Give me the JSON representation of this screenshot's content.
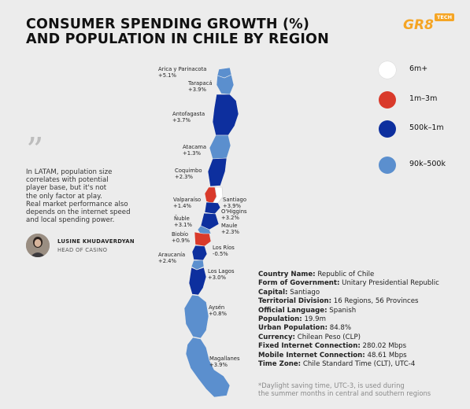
{
  "title": {
    "line1": "CONSUMER SPENDING GROWTH (%)",
    "line2": "AND POPULATION IN CHILE BY REGION"
  },
  "logo": {
    "text": "GR8",
    "tag": "TECH"
  },
  "colors": {
    "six_m_plus": "#ffffff",
    "one_to_three_m": "#d93a2b",
    "five_hundred_k_to_one_m": "#0d2f9e",
    "ninety_k_to_five_hundred_k": "#5b8fce"
  },
  "legend": [
    {
      "label": "6m+",
      "color": "#ffffff"
    },
    {
      "label": "1m–3m",
      "color": "#d93a2b"
    },
    {
      "label": "500k–1m",
      "color": "#0d2f9e"
    },
    {
      "label": "90k–500k",
      "color": "#5b8fce"
    }
  ],
  "regions": [
    {
      "name": "Arica y Parinacota",
      "growth": "+5.1%",
      "population_class": "90k–500k"
    },
    {
      "name": "Tarapacá",
      "growth": "+3.9%",
      "population_class": "90k–500k"
    },
    {
      "name": "Antofagasta",
      "growth": "+3.7%",
      "population_class": "500k–1m"
    },
    {
      "name": "Atacama",
      "growth": "+1.3%",
      "population_class": "90k–500k"
    },
    {
      "name": "Coquimbo",
      "growth": "+2.3%",
      "population_class": "500k–1m"
    },
    {
      "name": "Valparaíso",
      "growth": "+1.4%",
      "population_class": "1m–3m"
    },
    {
      "name": "Santiago",
      "growth": "+3.9%",
      "population_class": "6m+"
    },
    {
      "name": "O'Higgins",
      "growth": "+3.2%",
      "population_class": "500k–1m"
    },
    {
      "name": "Ñuble",
      "growth": "+3.1%",
      "population_class": "90k–500k"
    },
    {
      "name": "Maule",
      "growth": "+2.3%",
      "population_class": "1m–3m"
    },
    {
      "name": "Biobío",
      "growth": "+0.9%",
      "population_class": "1m–3m"
    },
    {
      "name": "Los Ríos",
      "growth": "-0.5%",
      "population_class": "90k–500k"
    },
    {
      "name": "Araucanía",
      "growth": "+2.4%",
      "population_class": "500k–1m"
    },
    {
      "name": "Los Lagos",
      "growth": "+3.0%",
      "population_class": "500k–1m"
    },
    {
      "name": "Aysén",
      "growth": "+0.8%",
      "population_class": "90k–500k"
    },
    {
      "name": "Magallanes",
      "growth": "+3.9%",
      "population_class": "90k–500k"
    }
  ],
  "quote": {
    "lines": [
      "In LATAM, population size",
      "correlates with potential",
      "player base, but it's not",
      "the only factor at play.",
      "Real market performance also",
      "depends on the internet speed",
      "and local spending power."
    ],
    "author_name": "LUSINE KHUDAVERDYAN",
    "author_role": "HEAD OF CASINO"
  },
  "facts": [
    {
      "label": "Country Name:",
      "value": "Republic of Chile"
    },
    {
      "label": "Form of Government:",
      "value": "Unitary Presidential Republic"
    },
    {
      "label": "Capital:",
      "value": "Santiago"
    },
    {
      "label": "Territorial Division:",
      "value": "16 Regions, 56 Provinces"
    },
    {
      "label": "Official Language:",
      "value": "Spanish"
    },
    {
      "label": "Population:",
      "value": "19.9m"
    },
    {
      "label": "Urban Population:",
      "value": "84.8%"
    },
    {
      "label": "Currency:",
      "value": "Chilean Peso (CLP)"
    },
    {
      "label": "Fixed Internet Connection:",
      "value": "280.02 Mbps"
    },
    {
      "label": "Mobile Internet Connection:",
      "value": "48.61 Mbps"
    },
    {
      "label": "Time Zone:",
      "value": "Chile Standard Time (CLT), UTC-4"
    }
  ],
  "footnote": {
    "line1": "*Daylight saving time, UTC-3, is used during",
    "line2": "the summer months in central and southern regions"
  }
}
